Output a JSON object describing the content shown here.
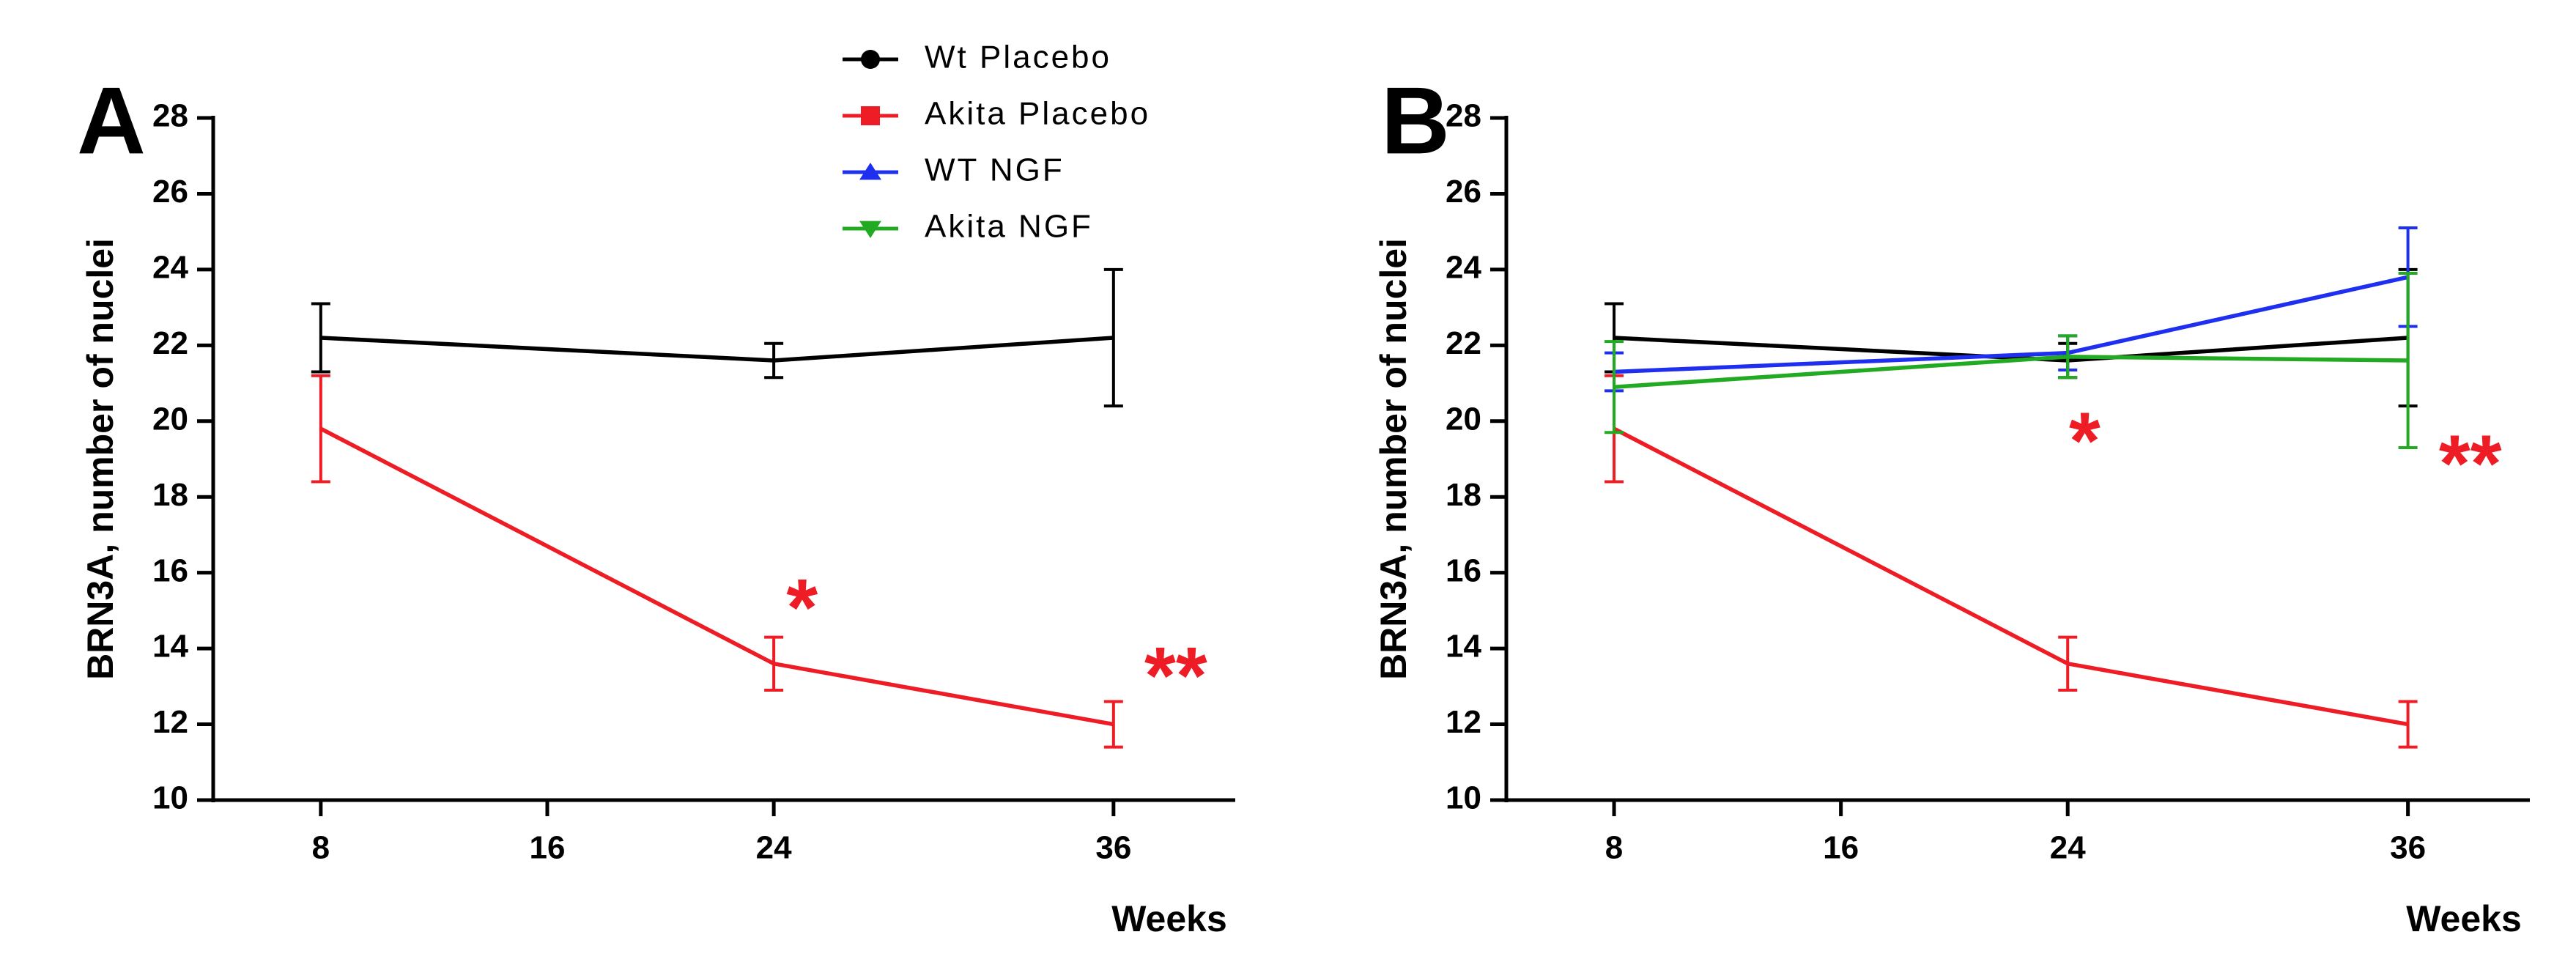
{
  "chart_data": [
    {
      "type": "line",
      "panel": "A",
      "y_label": "BRN3A, number of nuclei",
      "x_label": "Weeks",
      "x": [
        8,
        24,
        36
      ],
      "xlim": [
        4.2,
        40.3
      ],
      "xticks": [
        8,
        16,
        24,
        36
      ],
      "ylim": [
        10,
        28
      ],
      "yticks": [
        10,
        12,
        14,
        16,
        18,
        20,
        22,
        24,
        26,
        28
      ],
      "series": [
        {
          "color": "#000000",
          "values": [
            22.2,
            21.6,
            22.2
          ],
          "errors": [
            0.9,
            0.45,
            1.8
          ]
        },
        {
          "color": "#ee1c25",
          "values": [
            19.8,
            13.6,
            12.0
          ],
          "errors": [
            1.4,
            0.7,
            0.6
          ]
        }
      ],
      "annotations": [
        {
          "text": "*",
          "x": 25.0,
          "y": 15.3,
          "color": "#ee1c25"
        },
        {
          "text": "**",
          "x": 38.2,
          "y": 13.5,
          "color": "#ee1c25"
        }
      ]
    },
    {
      "type": "line",
      "panel": "B",
      "y_label": "BRN3A, number of nuclei",
      "x_label": "Weeks",
      "x": [
        8,
        24,
        36
      ],
      "xlim": [
        4.2,
        40.3
      ],
      "xticks": [
        8,
        16,
        24,
        36
      ],
      "ylim": [
        10,
        28
      ],
      "yticks": [
        10,
        12,
        14,
        16,
        18,
        20,
        22,
        24,
        26,
        28
      ],
      "legend": true,
      "series": [
        {
          "name": "Wt Placebo",
          "marker": "circle",
          "color": "#000000",
          "values": [
            22.2,
            21.6,
            22.2
          ],
          "errors": [
            0.9,
            0.45,
            1.8
          ]
        },
        {
          "name": "Akita Placebo",
          "marker": "square",
          "color": "#ee1c25",
          "values": [
            19.8,
            13.6,
            12.0
          ],
          "errors": [
            1.4,
            0.7,
            0.6
          ]
        },
        {
          "name": "WT NGF",
          "marker": "triangle-up",
          "color": "#1f2ff0",
          "values": [
            21.3,
            21.8,
            23.8
          ],
          "errors": [
            0.5,
            0.45,
            1.3
          ]
        },
        {
          "name": "Akita NGF",
          "marker": "triangle-down",
          "color": "#22aa22",
          "values": [
            20.9,
            21.7,
            21.6
          ],
          "errors": [
            1.2,
            0.55,
            2.3
          ]
        }
      ],
      "annotations": [
        {
          "text": "*",
          "x": 24.6,
          "y": 19.7,
          "color": "#ee1c25"
        },
        {
          "text": "**",
          "x": 38.2,
          "y": 19.1,
          "color": "#ee1c25"
        }
      ]
    }
  ]
}
